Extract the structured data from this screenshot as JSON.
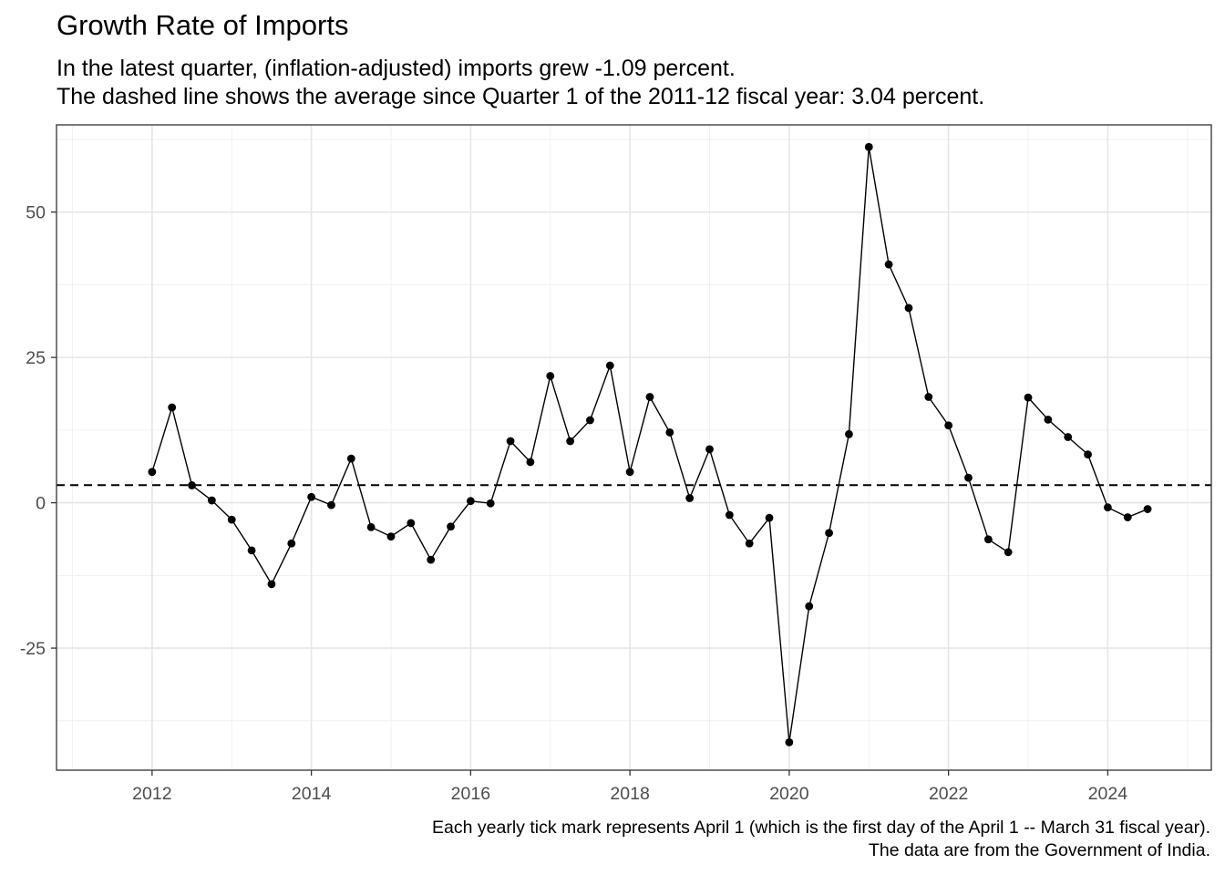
{
  "chart_data": {
    "type": "line",
    "title": "Growth Rate of Imports",
    "subtitle_lines": [
      "In the latest quarter, (inflation-adjusted) imports grew -1.09 percent.",
      "The dashed line shows the average since Quarter 1 of the 2011-12 fiscal year: 3.04 percent."
    ],
    "caption_lines": [
      "Each yearly tick mark represents April 1 (which is the first day of the April 1 -- March 31 fiscal year).",
      "The data are from the Government of India."
    ],
    "xlabel": "",
    "ylabel": "",
    "x_ticks": [
      "2012",
      "2014",
      "2016",
      "2018",
      "2020",
      "2022",
      "2024"
    ],
    "y_ticks": [
      "-25",
      "0",
      "25",
      "50"
    ],
    "xlim": [
      2010.8,
      2025.3
    ],
    "ylim": [
      -46,
      65
    ],
    "grid": true,
    "reference_line": {
      "value": 3.04,
      "style": "dashed"
    },
    "series": [
      {
        "x": [
          2012.0,
          2012.25,
          2012.5,
          2012.75,
          2013.0,
          2013.25,
          2013.5,
          2013.75,
          2014.0,
          2014.25,
          2014.5,
          2014.75,
          2015.0,
          2015.25,
          2015.5,
          2015.75,
          2016.0,
          2016.25,
          2016.5,
          2016.75,
          2017.0,
          2017.25,
          2017.5,
          2017.75,
          2018.0,
          2018.25,
          2018.5,
          2018.75,
          2019.0,
          2019.25,
          2019.5,
          2019.75,
          2020.0,
          2020.25,
          2020.5,
          2020.75,
          2021.0,
          2021.25,
          2021.5,
          2021.75,
          2022.0,
          2022.25,
          2022.5,
          2022.75,
          2023.0,
          2023.25,
          2023.5,
          2023.75,
          2024.0,
          2024.25,
          2024.5
        ],
        "y": [
          5.3,
          16.4,
          3.0,
          0.4,
          -2.9,
          -8.2,
          -14.0,
          -7.0,
          1.0,
          -0.4,
          7.6,
          -4.2,
          -5.8,
          -3.5,
          -9.8,
          -4.1,
          0.3,
          -0.1,
          10.6,
          7.0,
          21.8,
          10.6,
          14.2,
          23.6,
          5.3,
          18.2,
          12.1,
          0.8,
          9.2,
          -2.1,
          -7.0,
          -2.6,
          -41.2,
          -17.8,
          -5.2,
          11.8,
          61.2,
          41.0,
          33.5,
          18.2,
          13.3,
          4.3,
          -6.3,
          -8.5,
          18.1,
          14.3,
          11.3,
          8.3,
          -0.8,
          -2.5,
          -1.09
        ]
      }
    ]
  }
}
